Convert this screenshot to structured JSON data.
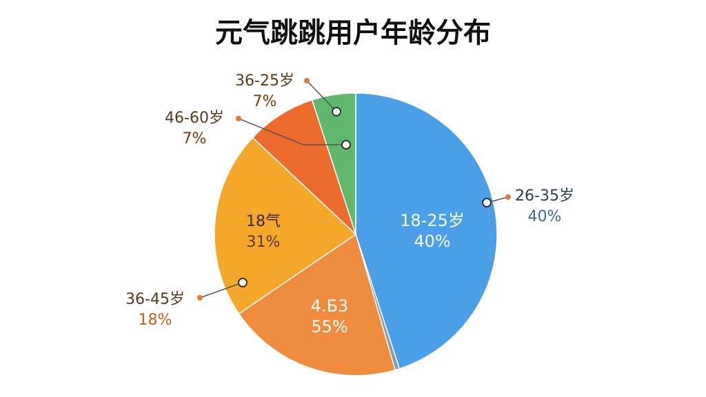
{
  "chart_data": {
    "type": "pie",
    "title": "元气跳跳用户年龄分布",
    "values": [
      45,
      0.5,
      20,
      21.5,
      8,
      5
    ],
    "colors": [
      "#4a9fe8",
      "#8a9bb0",
      "#f08c3e",
      "#f5a72a",
      "#ec6a2c",
      "#5fb86b"
    ],
    "annotations": [
      {
        "lines": [
          "36-25岁",
          "7%"
        ]
      },
      {
        "lines": [
          "46-60岁",
          "7%"
        ]
      },
      {
        "lines": [
          "26-35岁",
          "40%"
        ]
      },
      {
        "lines": [
          "36-45岁",
          "18%"
        ]
      },
      {
        "lines": [
          "18-25岁",
          "40%"
        ]
      },
      {
        "lines": [
          "18气",
          "31%"
        ]
      },
      {
        "lines": [
          "4.Б3",
          "55%"
        ]
      }
    ]
  }
}
